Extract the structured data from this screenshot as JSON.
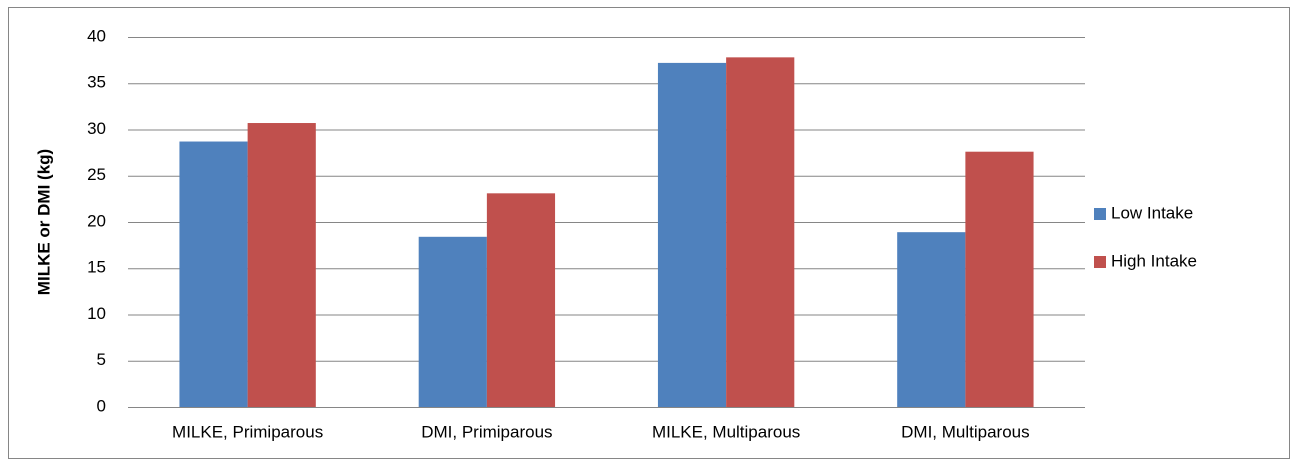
{
  "chart_data": {
    "type": "bar",
    "y_label": "MILKE or DMI (kg)",
    "categories": [
      "MILKE, Primiparous",
      "DMI, Primiparous",
      "MILKE, Multiparous",
      "DMI, Multiparous"
    ],
    "series": [
      {
        "name": "Low Intake",
        "color": "#4f81bd",
        "values": [
          28.7,
          18.4,
          37.2,
          18.9
        ]
      },
      {
        "name": "High Intake",
        "color": "#c0504d",
        "values": [
          30.7,
          23.1,
          37.8,
          27.6
        ]
      }
    ],
    "ylim": [
      0,
      40
    ],
    "yticks": [
      0,
      5,
      10,
      15,
      20,
      25,
      30,
      35,
      40
    ],
    "grid": true,
    "legend": "right"
  }
}
